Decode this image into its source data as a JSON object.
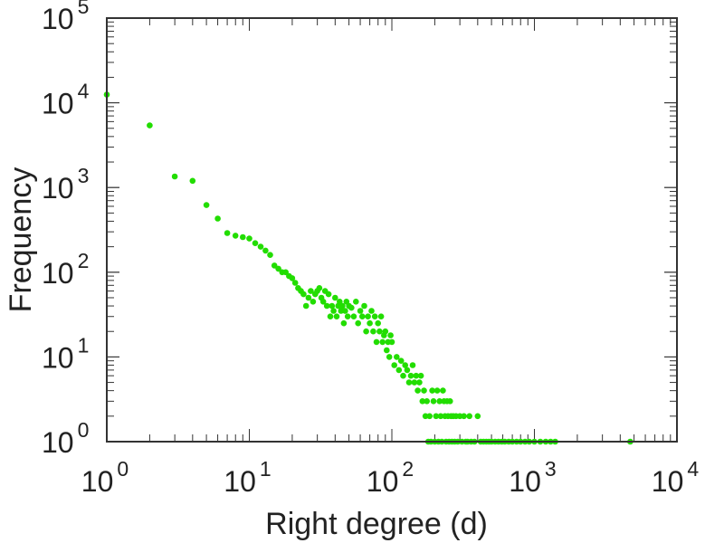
{
  "chart_data": {
    "type": "scatter",
    "xlabel": "Right degree (d)",
    "ylabel": "Frequency",
    "xscale": "log",
    "yscale": "log",
    "xlim": [
      1,
      10000
    ],
    "ylim": [
      1,
      100000
    ],
    "x_ticks": [
      {
        "value": 1,
        "base": "10",
        "exp": "0"
      },
      {
        "value": 10,
        "base": "10",
        "exp": "1"
      },
      {
        "value": 100,
        "base": "10",
        "exp": "2"
      },
      {
        "value": 1000,
        "base": "10",
        "exp": "3"
      },
      {
        "value": 10000,
        "base": "10",
        "exp": "4"
      }
    ],
    "y_ticks": [
      {
        "value": 1,
        "base": "10",
        "exp": "0"
      },
      {
        "value": 10,
        "base": "10",
        "exp": "1"
      },
      {
        "value": 100,
        "base": "10",
        "exp": "2"
      },
      {
        "value": 1000,
        "base": "10",
        "exp": "3"
      },
      {
        "value": 10000,
        "base": "10",
        "exp": "4"
      },
      {
        "value": 100000,
        "base": "10",
        "exp": "5"
      }
    ],
    "grid": false,
    "marker_color": "#22dd00",
    "frame_color": "#333333",
    "points": [
      [
        1,
        12500
      ],
      [
        2,
        5400
      ],
      [
        3,
        1350
      ],
      [
        4,
        1200
      ],
      [
        5,
        620
      ],
      [
        6,
        430
      ],
      [
        7,
        290
      ],
      [
        8,
        270
      ],
      [
        9,
        260
      ],
      [
        10,
        250
      ],
      [
        11,
        220
      ],
      [
        12,
        200
      ],
      [
        13,
        180
      ],
      [
        14,
        160
      ],
      [
        15,
        120
      ],
      [
        16,
        110
      ],
      [
        17,
        100
      ],
      [
        18,
        100
      ],
      [
        19,
        90
      ],
      [
        20,
        85
      ],
      [
        21,
        75
      ],
      [
        22,
        65
      ],
      [
        23,
        60
      ],
      [
        24,
        55
      ],
      [
        25,
        40
      ],
      [
        26,
        50
      ],
      [
        27,
        60
      ],
      [
        28,
        45
      ],
      [
        29,
        55
      ],
      [
        30,
        60
      ],
      [
        31,
        65
      ],
      [
        32,
        50
      ],
      [
        33,
        45
      ],
      [
        34,
        60
      ],
      [
        35,
        40
      ],
      [
        36,
        55
      ],
      [
        37,
        30
      ],
      [
        38,
        40
      ],
      [
        39,
        35
      ],
      [
        40,
        50
      ],
      [
        41,
        30
      ],
      [
        42,
        40
      ],
      [
        43,
        45
      ],
      [
        44,
        35
      ],
      [
        45,
        40
      ],
      [
        46,
        25
      ],
      [
        47,
        35
      ],
      [
        48,
        45
      ],
      [
        49,
        30
      ],
      [
        50,
        40
      ],
      [
        52,
        38
      ],
      [
        54,
        30
      ],
      [
        56,
        45
      ],
      [
        58,
        25
      ],
      [
        60,
        35
      ],
      [
        62,
        30
      ],
      [
        64,
        40
      ],
      [
        66,
        20
      ],
      [
        68,
        30
      ],
      [
        70,
        25
      ],
      [
        72,
        35
      ],
      [
        74,
        20
      ],
      [
        76,
        30
      ],
      [
        78,
        15
      ],
      [
        80,
        25
      ],
      [
        82,
        20
      ],
      [
        84,
        30
      ],
      [
        86,
        15
      ],
      [
        88,
        18
      ],
      [
        90,
        20
      ],
      [
        92,
        12
      ],
      [
        94,
        15
      ],
      [
        96,
        10
      ],
      [
        98,
        18
      ],
      [
        100,
        15
      ],
      [
        104,
        8
      ],
      [
        108,
        10
      ],
      [
        112,
        7
      ],
      [
        116,
        9
      ],
      [
        120,
        6
      ],
      [
        124,
        8
      ],
      [
        128,
        7
      ],
      [
        132,
        5
      ],
      [
        136,
        6
      ],
      [
        140,
        8
      ],
      [
        144,
        5
      ],
      [
        148,
        6
      ],
      [
        152,
        4
      ],
      [
        156,
        5
      ],
      [
        160,
        6
      ],
      [
        164,
        3
      ],
      [
        168,
        4
      ],
      [
        172,
        2
      ],
      [
        176,
        3
      ],
      [
        180,
        1
      ],
      [
        184,
        2
      ],
      [
        188,
        1
      ],
      [
        192,
        4
      ],
      [
        196,
        3
      ],
      [
        200,
        1
      ],
      [
        204,
        2
      ],
      [
        208,
        4
      ],
      [
        212,
        1
      ],
      [
        216,
        3
      ],
      [
        220,
        2
      ],
      [
        224,
        1
      ],
      [
        228,
        4
      ],
      [
        232,
        3
      ],
      [
        236,
        2
      ],
      [
        240,
        1
      ],
      [
        244,
        3
      ],
      [
        248,
        2
      ],
      [
        252,
        1
      ],
      [
        256,
        3
      ],
      [
        260,
        2
      ],
      [
        264,
        1
      ],
      [
        270,
        2
      ],
      [
        276,
        1
      ],
      [
        282,
        2
      ],
      [
        290,
        1
      ],
      [
        300,
        2
      ],
      [
        310,
        1
      ],
      [
        320,
        2
      ],
      [
        330,
        1
      ],
      [
        340,
        1
      ],
      [
        350,
        2
      ],
      [
        360,
        1
      ],
      [
        380,
        1
      ],
      [
        400,
        2
      ],
      [
        420,
        1
      ],
      [
        440,
        1
      ],
      [
        460,
        1
      ],
      [
        480,
        1
      ],
      [
        500,
        1
      ],
      [
        530,
        1
      ],
      [
        560,
        1
      ],
      [
        590,
        1
      ],
      [
        620,
        1
      ],
      [
        660,
        1
      ],
      [
        700,
        1
      ],
      [
        750,
        1
      ],
      [
        800,
        1
      ],
      [
        860,
        1
      ],
      [
        920,
        1
      ],
      [
        1000,
        1
      ],
      [
        1100,
        1
      ],
      [
        1200,
        1
      ],
      [
        1300,
        1
      ],
      [
        1400,
        1
      ],
      [
        4700,
        1
      ]
    ]
  }
}
